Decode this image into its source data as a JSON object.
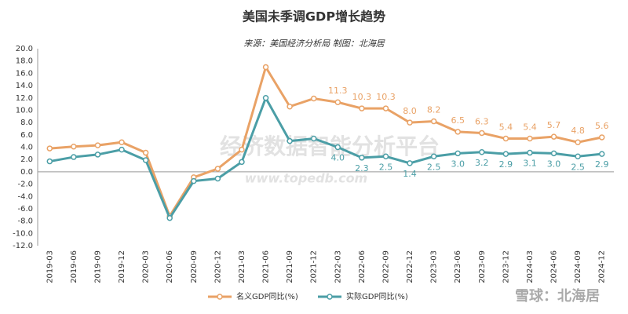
{
  "chart_data": {
    "type": "line",
    "title": "美国未季调GDP增长趋势",
    "subtitle": "来源：美国经济分析局 制图：北海居",
    "watermarks": [
      "经济数据智能分析平台",
      "www.topedb.com",
      "雪球：北海居"
    ],
    "categories": [
      "2019-03",
      "2019-06",
      "2019-09",
      "2019-12",
      "2020-03",
      "2020-06",
      "2020-09",
      "2020-12",
      "2021-03",
      "2021-06",
      "2021-09",
      "2021-12",
      "2022-03",
      "2022-06",
      "2022-09",
      "2022-12",
      "2023-03",
      "2023-06",
      "2023-09",
      "2023-12",
      "2024-03",
      "2024-06",
      "2024-09",
      "2024-12"
    ],
    "series": [
      {
        "name": "名义GDP同比(%)",
        "color": "#e9a266",
        "values": [
          3.8,
          4.1,
          4.3,
          4.8,
          3.1,
          -7.2,
          -0.9,
          0.5,
          3.6,
          17.0,
          10.6,
          11.9,
          11.3,
          10.3,
          10.3,
          8.0,
          8.2,
          6.5,
          6.3,
          5.4,
          5.4,
          5.7,
          4.8,
          5.6
        ],
        "value_labels": [
          null,
          null,
          null,
          null,
          null,
          null,
          null,
          null,
          null,
          null,
          null,
          null,
          "11.3",
          "10.3",
          "10.3",
          "8.0",
          "8.2",
          "6.5",
          "6.3",
          "5.4",
          "5.4",
          "5.7",
          "4.8",
          "5.6"
        ]
      },
      {
        "name": "实际GDP同比(%)",
        "color": "#4b9ea6",
        "values": [
          1.7,
          2.4,
          2.8,
          3.6,
          1.9,
          -7.5,
          -1.5,
          -1.1,
          1.6,
          12.0,
          5.0,
          5.4,
          4.0,
          2.3,
          2.5,
          1.4,
          2.5,
          3.0,
          3.2,
          2.9,
          3.1,
          3.0,
          2.5,
          2.9
        ],
        "value_labels": [
          null,
          null,
          null,
          null,
          null,
          null,
          null,
          null,
          null,
          null,
          null,
          null,
          "4.0",
          "2.3",
          "2.5",
          "1.4",
          "2.5",
          "3.0",
          "3.2",
          "2.9",
          "3.1",
          "3.0",
          "2.5",
          "2.9"
        ]
      }
    ],
    "ylim": [
      -12,
      20
    ],
    "yticks": [
      {
        "value": 20,
        "label": "20.0"
      },
      {
        "value": 18,
        "label": "18.0"
      },
      {
        "value": 16,
        "label": "16.0"
      },
      {
        "value": 14,
        "label": "14.0"
      },
      {
        "value": 12,
        "label": "12.0"
      },
      {
        "value": 10,
        "label": "10.0"
      },
      {
        "value": 8,
        "label": "8.0"
      },
      {
        "value": 6,
        "label": "6.0"
      },
      {
        "value": 4,
        "label": "4.0"
      },
      {
        "value": 2,
        "label": "2.0"
      },
      {
        "value": 0,
        "label": "0.0"
      },
      {
        "value": -2,
        "label": "-2.0"
      },
      {
        "value": -4,
        "label": "-4.0"
      },
      {
        "value": -6,
        "label": "-6.0"
      },
      {
        "value": -8,
        "label": "-8.0"
      },
      {
        "value": -10,
        "label": "-10.0"
      },
      {
        "value": -12,
        "label": "-12.0"
      }
    ],
    "grid": false,
    "legend": "bottom"
  }
}
